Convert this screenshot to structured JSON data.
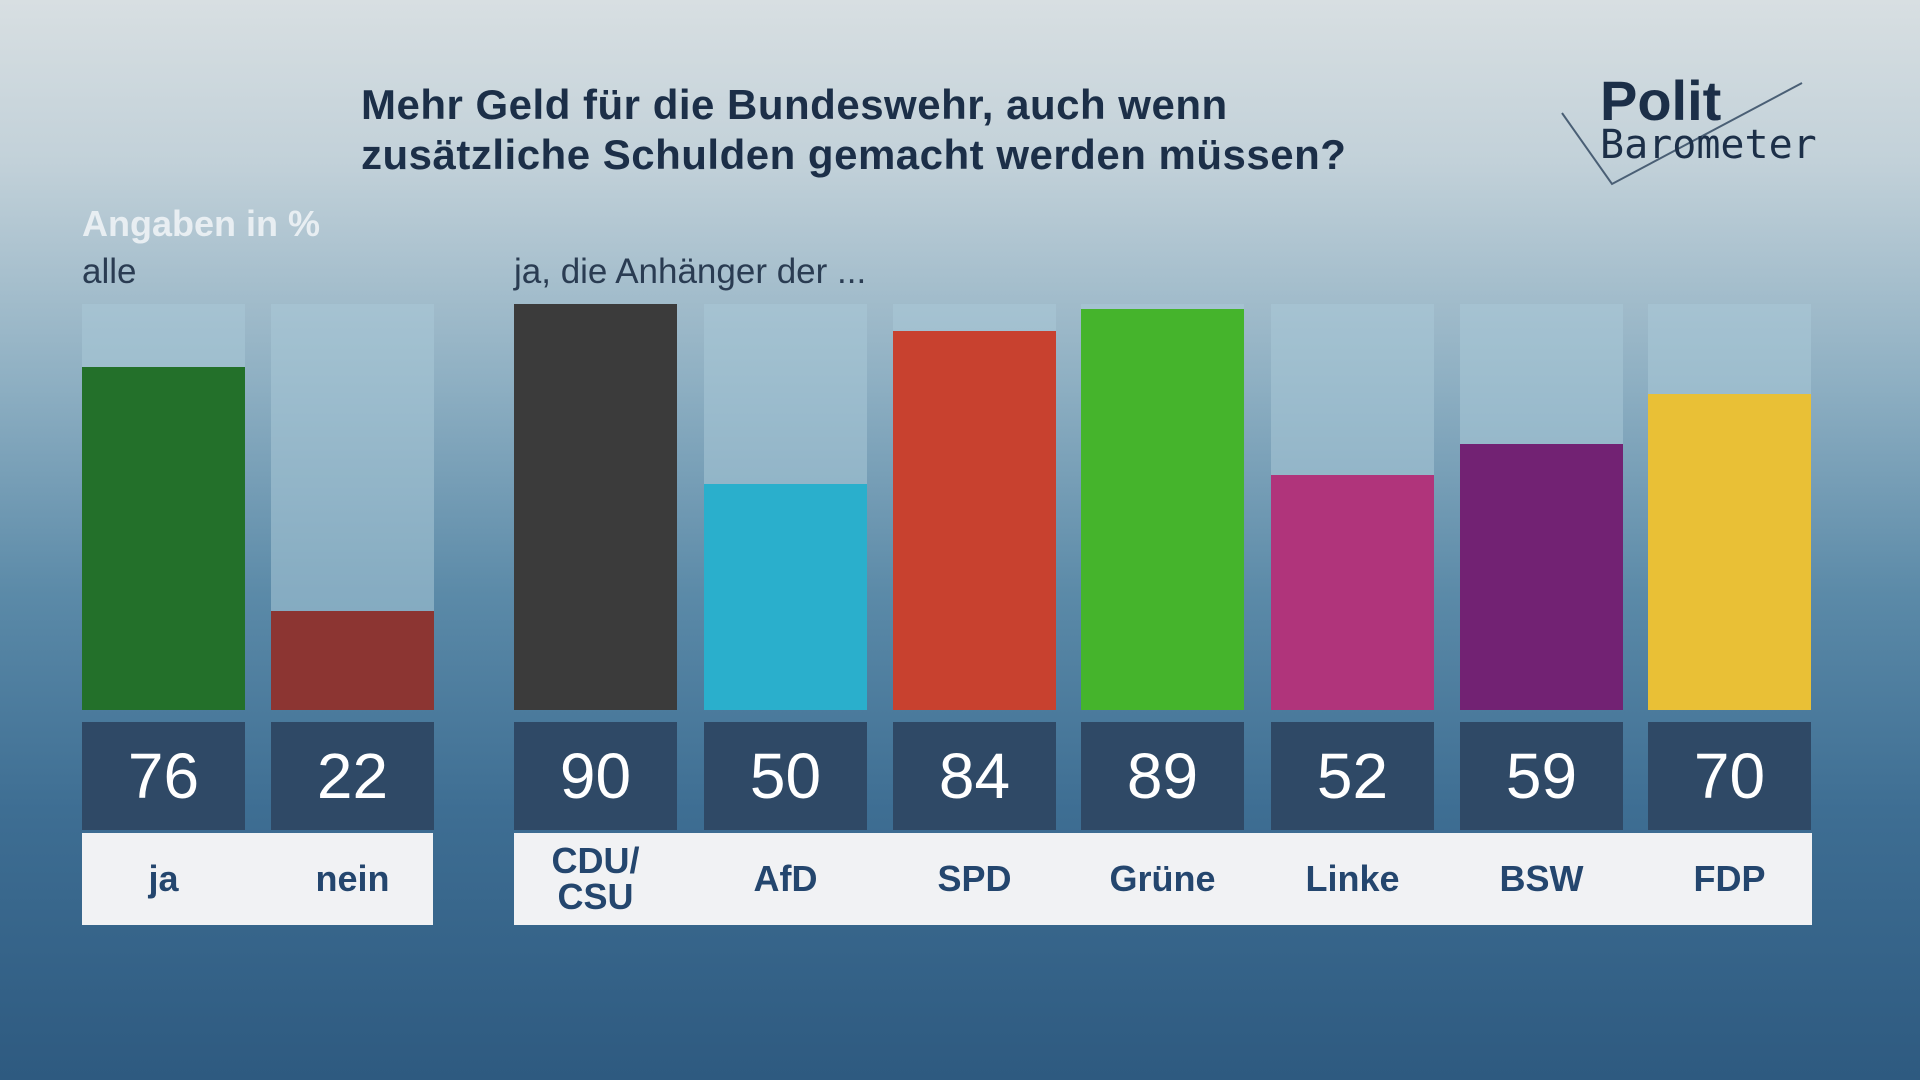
{
  "chart_data": {
    "type": "bar",
    "title": "Mehr Geld für die Bundeswehr, auch wenn zusätzliche Schulden gemacht werden müssen?",
    "title_lines": [
      "Mehr Geld für die Bundeswehr, auch wenn",
      "zusätzliche Schulden gemacht werden müssen?"
    ],
    "unit_label": "Angaben in %",
    "group_all_label": "alle",
    "group_parties_label": "ja, die Anhänger der ...",
    "ylim": [
      0,
      90
    ],
    "grid": false,
    "groups": [
      {
        "name": "alle",
        "categories": [
          "ja",
          "nein"
        ],
        "values": [
          76,
          22
        ],
        "colors": [
          "#23702a",
          "#8c3532"
        ]
      },
      {
        "name": "ja, die Anhänger der ...",
        "categories": [
          "CDU/\nCSU",
          "AfD",
          "SPD",
          "Grüne",
          "Linke",
          "BSW",
          "FDP"
        ],
        "values": [
          90,
          50,
          84,
          89,
          52,
          59,
          70
        ],
        "colors": [
          "#3b3b3b",
          "#2aafcc",
          "#c8412f",
          "#45b42c",
          "#b0347b",
          "#722273",
          "#e9c036"
        ]
      }
    ]
  },
  "logo": {
    "line1": "Polit",
    "line2": "Barometer"
  }
}
